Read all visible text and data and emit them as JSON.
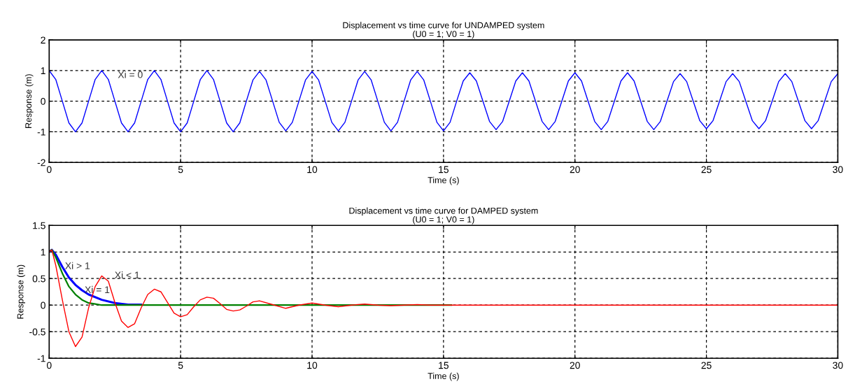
{
  "chart_data": [
    {
      "type": "line",
      "title": "Displacement vs time curve for UNDAMPED system",
      "subtitle": "(U0 = 1; V0 = 1)",
      "xlabel": "Time (s)",
      "ylabel": "Response (m)",
      "xlim": [
        0,
        30
      ],
      "ylim": [
        -2,
        2
      ],
      "xticks": [
        0,
        5,
        10,
        15,
        20,
        25,
        30
      ],
      "yticks": [
        -2,
        -1,
        0,
        1,
        2
      ],
      "grid": true,
      "annotations": [
        "Xi = 0"
      ],
      "series": [
        {
          "color": "#0000ff",
          "x": [
            0,
            0.25,
            0.5,
            0.75,
            1,
            1.25,
            1.5,
            1.75,
            2,
            2.25,
            2.5,
            2.75,
            3,
            3.25,
            3.5,
            3.75,
            4,
            4.25,
            4.5,
            4.75,
            5,
            5.25,
            5.5,
            5.75,
            6,
            6.25,
            6.5,
            6.75,
            7,
            7.25,
            7.5,
            7.75,
            8,
            8.25,
            8.5,
            8.75,
            9,
            9.25,
            9.5,
            9.75,
            10,
            10.25,
            10.5,
            10.75,
            11,
            11.25,
            11.5,
            11.75,
            12,
            12.25,
            12.5,
            12.75,
            13,
            13.25,
            13.5,
            13.75,
            14,
            14.25,
            14.5,
            14.75,
            15,
            15.25,
            15.5,
            15.75,
            16,
            16.25,
            16.5,
            16.75,
            17,
            17.25,
            17.5,
            17.75,
            18,
            18.25,
            18.5,
            18.75,
            19,
            19.25,
            19.5,
            19.75,
            20,
            20.25,
            20.5,
            20.75,
            21,
            21.25,
            21.5,
            21.75,
            22,
            22.25,
            22.5,
            22.75,
            23,
            23.25,
            23.5,
            23.75,
            24,
            24.25,
            24.5,
            24.75,
            25,
            25.25,
            25.5,
            25.75,
            26,
            26.25,
            26.5,
            26.75,
            27,
            27.25,
            27.5,
            27.75,
            28,
            28.25,
            28.5,
            28.75,
            29,
            29.25,
            29.5,
            29.75,
            30
          ],
          "values": [
            1,
            0.71,
            0,
            -0.71,
            -1,
            -0.71,
            0,
            0.71,
            1,
            0.71,
            0,
            -0.71,
            -1,
            -0.71,
            0,
            0.71,
            1,
            0.71,
            0,
            -0.71,
            -1,
            -0.71,
            0,
            0.71,
            1,
            0.71,
            0,
            -0.71,
            -1,
            -0.71,
            0,
            0.69,
            0.97,
            0.69,
            0,
            -0.69,
            -0.97,
            -0.69,
            0,
            0.69,
            0.97,
            0.69,
            0,
            -0.69,
            -0.97,
            -0.69,
            0,
            0.69,
            0.97,
            0.69,
            0,
            -0.69,
            -0.97,
            -0.69,
            0,
            0.69,
            0.97,
            0.69,
            0,
            -0.69,
            -0.97,
            -0.69,
            0,
            0.66,
            0.93,
            0.66,
            0,
            -0.66,
            -0.93,
            -0.66,
            0,
            0.66,
            0.93,
            0.66,
            0,
            -0.66,
            -0.93,
            -0.66,
            0,
            0.66,
            0.93,
            0.66,
            0,
            -0.66,
            -0.93,
            -0.66,
            0,
            0.66,
            0.93,
            0.66,
            0,
            -0.66,
            -0.93,
            -0.66,
            0,
            0.64,
            0.9,
            0.64,
            0,
            -0.64,
            -0.9,
            -0.64,
            0,
            0.64,
            0.9,
            0.64,
            0,
            -0.64,
            -0.9,
            -0.64,
            0,
            0.64,
            0.9,
            0.64,
            0,
            -0.64,
            -0.9,
            -0.64,
            0,
            0.64,
            0.9
          ]
        }
      ]
    },
    {
      "type": "line",
      "title": "Displacement vs time curve for DAMPED system",
      "subtitle": "(U0 = 1; V0 = 1)",
      "xlabel": "Time (s)",
      "ylabel": "Response (m)",
      "xlim": [
        0,
        30
      ],
      "ylim": [
        -1,
        1.5
      ],
      "xticks": [
        0,
        5,
        10,
        15,
        20,
        25,
        30
      ],
      "yticks": [
        -1,
        -0.5,
        0,
        0.5,
        1,
        1.5
      ],
      "grid": true,
      "annotations": [
        "Xi > 1",
        "Xi < 1",
        "Xi = 1"
      ],
      "series": [
        {
          "color": "#0000ff",
          "x": [
            0,
            0.1,
            0.25,
            0.5,
            0.75,
            1,
            1.25,
            1.5,
            2,
            2.5,
            3,
            3.5
          ],
          "values": [
            1,
            1.04,
            0.95,
            0.72,
            0.52,
            0.38,
            0.28,
            0.2,
            0.1,
            0.04,
            0.01,
            0.01
          ]
        },
        {
          "color": "#008000",
          "x": [
            0,
            0.1,
            0.25,
            0.5,
            0.75,
            1,
            1.25,
            1.5,
            1.75,
            2,
            15.3
          ],
          "values": [
            1,
            1.04,
            0.9,
            0.6,
            0.35,
            0.2,
            0.1,
            0.04,
            0.02,
            0,
            0
          ]
        },
        {
          "color": "#ff0000",
          "x": [
            0,
            0.1,
            0.25,
            0.5,
            0.75,
            1,
            1.25,
            1.5,
            1.75,
            2,
            2.25,
            2.5,
            2.75,
            3,
            3.25,
            3.5,
            3.75,
            4,
            4.25,
            4.5,
            4.75,
            5,
            5.25,
            5.5,
            5.75,
            6,
            6.25,
            6.5,
            6.75,
            7,
            7.25,
            7.5,
            7.75,
            8,
            8.5,
            9,
            9.5,
            10,
            10.5,
            11,
            11.5,
            12,
            12.5,
            13,
            13.5,
            14,
            14.5,
            30
          ],
          "values": [
            1,
            1.04,
            0.75,
            0.1,
            -0.5,
            -0.78,
            -0.6,
            -0.05,
            0.35,
            0.55,
            0.45,
            0.05,
            -0.3,
            -0.42,
            -0.35,
            -0.05,
            0.2,
            0.3,
            0.25,
            0.05,
            -0.15,
            -0.22,
            -0.18,
            -0.03,
            0.1,
            0.15,
            0.13,
            0.03,
            -0.08,
            -0.11,
            -0.09,
            -0.02,
            0.06,
            0.08,
            0.01,
            -0.06,
            0,
            0.04,
            0,
            -0.03,
            0,
            0.02,
            0,
            -0.01,
            0,
            0.01,
            0,
            0
          ]
        }
      ]
    }
  ]
}
